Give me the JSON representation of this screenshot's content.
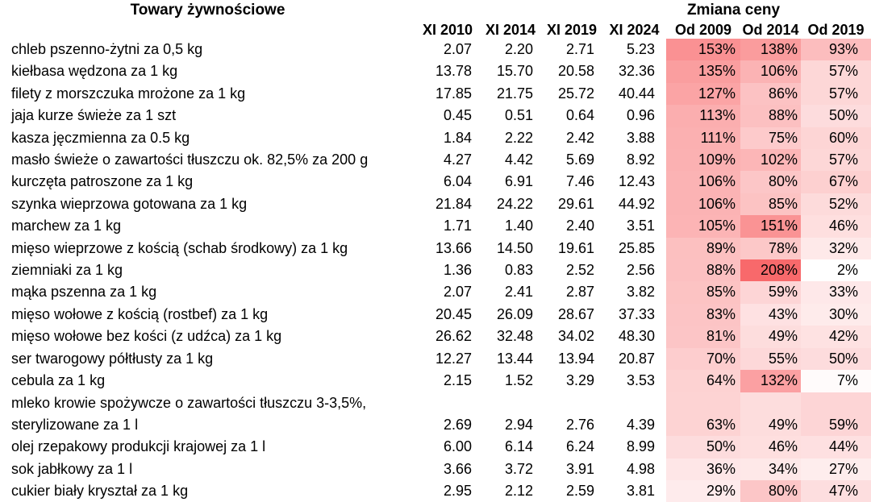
{
  "chart_data": {
    "type": "table",
    "title": "Towary żywnościowe",
    "change_group_title": "Zmiana ceny",
    "price_columns": [
      "XI 2010",
      "XI 2014",
      "XI 2019",
      "XI 2024"
    ],
    "change_columns": [
      "Od 2009",
      "Od 2014",
      "Od 2019"
    ],
    "rows": [
      {
        "label": "chleb pszenno-żytni za 0,5 kg",
        "prices": [
          "2.07",
          "2.20",
          "2.71",
          "5.23"
        ],
        "changes": [
          "153%",
          "138%",
          "93%"
        ]
      },
      {
        "label": "kiełbasa wędzona za 1 kg",
        "prices": [
          "13.78",
          "15.70",
          "20.58",
          "32.36"
        ],
        "changes": [
          "135%",
          "106%",
          "57%"
        ]
      },
      {
        "label": "filety z morszczuka mrożone za 1 kg",
        "prices": [
          "17.85",
          "21.75",
          "25.72",
          "40.44"
        ],
        "changes": [
          "127%",
          "86%",
          "57%"
        ]
      },
      {
        "label": "jaja kurze świeże za 1 szt",
        "prices": [
          "0.45",
          "0.51",
          "0.64",
          "0.96"
        ],
        "changes": [
          "113%",
          "88%",
          "50%"
        ]
      },
      {
        "label": "kasza jęczmienna za 0.5 kg",
        "prices": [
          "1.84",
          "2.22",
          "2.42",
          "3.88"
        ],
        "changes": [
          "111%",
          "75%",
          "60%"
        ]
      },
      {
        "label": "masło świeże o zawartości tłuszczu ok. 82,5% za 200 g",
        "prices": [
          "4.27",
          "4.42",
          "5.69",
          "8.92"
        ],
        "changes": [
          "109%",
          "102%",
          "57%"
        ]
      },
      {
        "label": "kurczęta patroszone za 1 kg",
        "prices": [
          "6.04",
          "6.91",
          "7.46",
          "12.43"
        ],
        "changes": [
          "106%",
          "80%",
          "67%"
        ]
      },
      {
        "label": "szynka wieprzowa gotowana za 1 kg",
        "prices": [
          "21.84",
          "24.22",
          "29.61",
          "44.92"
        ],
        "changes": [
          "106%",
          "85%",
          "52%"
        ]
      },
      {
        "label": "marchew za 1 kg",
        "prices": [
          "1.71",
          "1.40",
          "2.40",
          "3.51"
        ],
        "changes": [
          "105%",
          "151%",
          "46%"
        ]
      },
      {
        "label": "mięso wieprzowe z kością (schab środkowy) za 1 kg",
        "prices": [
          "13.66",
          "14.50",
          "19.61",
          "25.85"
        ],
        "changes": [
          "89%",
          "78%",
          "32%"
        ]
      },
      {
        "label": "ziemniaki za 1 kg",
        "prices": [
          "1.36",
          "0.83",
          "2.52",
          "2.56"
        ],
        "changes": [
          "88%",
          "208%",
          "2%"
        ]
      },
      {
        "label": "mąka pszenna za 1 kg",
        "prices": [
          "2.07",
          "2.41",
          "2.87",
          "3.82"
        ],
        "changes": [
          "85%",
          "59%",
          "33%"
        ]
      },
      {
        "label": "mięso wołowe z kością (rostbef) za 1 kg",
        "prices": [
          "20.45",
          "26.09",
          "28.67",
          "37.33"
        ],
        "changes": [
          "83%",
          "43%",
          "30%"
        ]
      },
      {
        "label": "mięso wołowe bez kości (z udźca) za 1 kg",
        "prices": [
          "26.62",
          "32.48",
          "34.02",
          "48.30"
        ],
        "changes": [
          "81%",
          "49%",
          "42%"
        ]
      },
      {
        "label": "ser twarogowy półtłusty za 1 kg",
        "prices": [
          "12.27",
          "13.44",
          "13.94",
          "20.87"
        ],
        "changes": [
          "70%",
          "55%",
          "50%"
        ]
      },
      {
        "label": "cebula za 1 kg",
        "prices": [
          "2.15",
          "1.52",
          "3.29",
          "3.53"
        ],
        "changes": [
          "64%",
          "132%",
          "7%"
        ]
      },
      {
        "label": "mleko krowie spożywcze o zawartości tłuszczu 3-3,5%,\nsterylizowane za 1 l",
        "prices": [
          "2.69",
          "2.94",
          "2.76",
          "4.39"
        ],
        "changes": [
          "63%",
          "49%",
          "59%"
        ],
        "two_line": true
      },
      {
        "label": "olej rzepakowy produkcji krajowej za 1 l",
        "prices": [
          "6.00",
          "6.14",
          "6.24",
          "8.99"
        ],
        "changes": [
          "50%",
          "46%",
          "44%"
        ]
      },
      {
        "label": "sok jabłkowy za 1 l",
        "prices": [
          "3.66",
          "3.72",
          "3.91",
          "4.98"
        ],
        "changes": [
          "36%",
          "34%",
          "27%"
        ]
      },
      {
        "label": "cukier biały kryształ za 1 kg",
        "prices": [
          "2.95",
          "2.12",
          "2.59",
          "3.81"
        ],
        "changes": [
          "29%",
          "80%",
          "47%"
        ]
      }
    ],
    "heatmap": {
      "applies_to": "change_columns",
      "min_value": 2,
      "max_value": 208,
      "min_color": "#FFFFFF",
      "max_color": "#F8696B"
    },
    "layout": {
      "grid": false,
      "background": "#FFFFFF",
      "text_color": "#000000",
      "price_alignment": "right",
      "change_alignment": "right"
    }
  }
}
